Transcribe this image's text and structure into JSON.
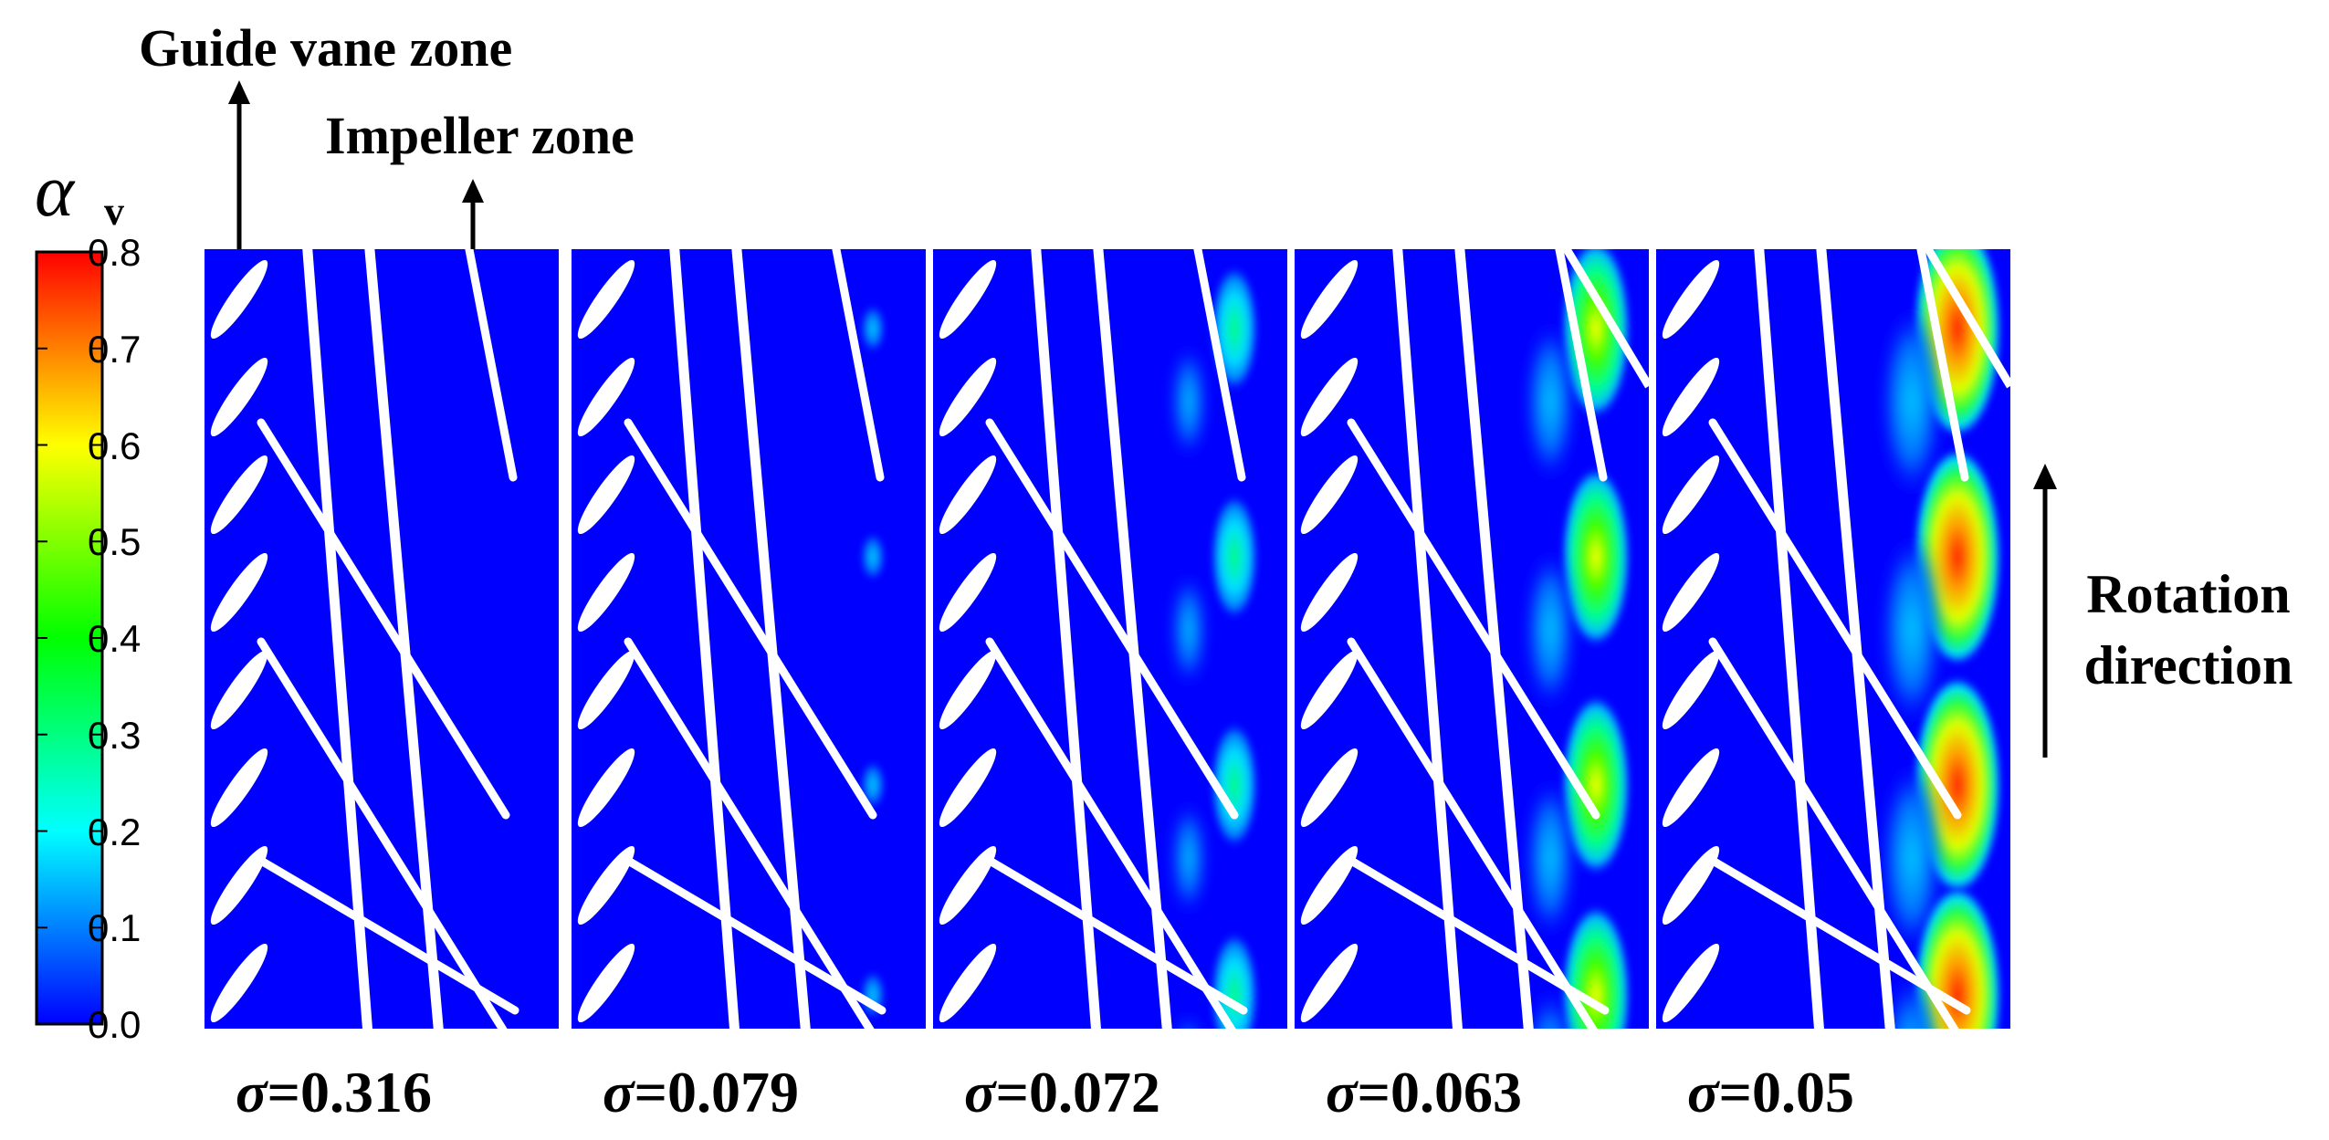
{
  "annotations": {
    "guide_vane_zone": "Guide vane zone",
    "impeller_zone": "Impeller zone",
    "rotation_line1": "Rotation",
    "rotation_line2": "direction"
  },
  "colorbar": {
    "symbol": "α",
    "subscript": "v",
    "ticks": [
      "0.8",
      "0.7",
      "0.6",
      "0.5",
      "0.4",
      "0.3",
      "0.2",
      "0.1",
      "0.0"
    ],
    "min": 0.0,
    "max": 0.8,
    "colors": [
      "#0000ff",
      "#00a0ff",
      "#00ffff",
      "#00ff60",
      "#40ff00",
      "#ffff00",
      "#ffa000",
      "#ff3000",
      "#ff0000"
    ]
  },
  "panels": [
    {
      "label_symbol": "σ",
      "label_value": "=0.316",
      "cavitation": 0.0
    },
    {
      "label_symbol": "σ",
      "label_value": "=0.079",
      "cavitation": 0.15
    },
    {
      "label_symbol": "σ",
      "label_value": "=0.072",
      "cavitation": 0.35
    },
    {
      "label_symbol": "σ",
      "label_value": "=0.063",
      "cavitation": 0.7
    },
    {
      "label_symbol": "σ",
      "label_value": "=0.05",
      "cavitation": 1.0
    }
  ],
  "colors": {
    "field_background": "#0000ff",
    "blade": "#ffffff",
    "text": "#000000"
  }
}
